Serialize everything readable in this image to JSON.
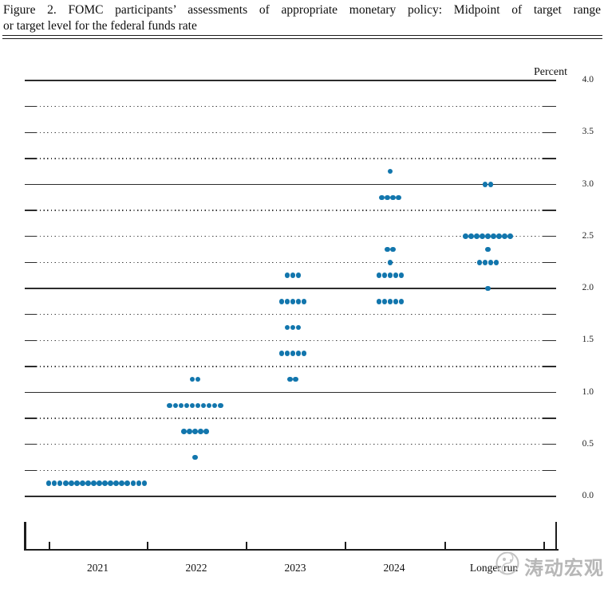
{
  "title": {
    "line1": "Figure 2.  FOMC participants’ assessments of appropriate monetary policy:  Midpoint of target range",
    "line2": "or target level for the federal funds rate"
  },
  "watermark": {
    "text": "涛动宏观"
  },
  "chart_data": {
    "type": "scatter",
    "subtype": "fomc-dot-plot",
    "title": "FOMC participants’ assessments of appropriate monetary policy: Midpoint of target range or target level for the federal funds rate",
    "ylabel": "Percent",
    "xlabel": "",
    "ylim": [
      0.0,
      4.0
    ],
    "y_gridline_step": 0.25,
    "y_label_step": 0.5,
    "grid": "dotted-quarters-solid-integers",
    "legend_position": "none",
    "ytick_labels": [
      "4.0",
      "3.5",
      "3.0",
      "2.5",
      "2.0",
      "1.5",
      "1.0",
      "0.5",
      "0.0"
    ],
    "categories": [
      "2021",
      "2022",
      "2023",
      "2024",
      "Longer run"
    ],
    "dot_color": "#1276ad",
    "dots": [
      {
        "category": "2021",
        "value": 0.125,
        "count": 18
      },
      {
        "category": "2022",
        "value": 0.375,
        "count": 1
      },
      {
        "category": "2022",
        "value": 0.625,
        "count": 5
      },
      {
        "category": "2022",
        "value": 0.875,
        "count": 10
      },
      {
        "category": "2022",
        "value": 1.125,
        "count": 2
      },
      {
        "category": "2023",
        "value": 1.125,
        "count": 2
      },
      {
        "category": "2023",
        "value": 1.375,
        "count": 5
      },
      {
        "category": "2023",
        "value": 1.625,
        "count": 3
      },
      {
        "category": "2023",
        "value": 1.875,
        "count": 5
      },
      {
        "category": "2023",
        "value": 2.125,
        "count": 3
      },
      {
        "category": "2024",
        "value": 1.875,
        "count": 5
      },
      {
        "category": "2024",
        "value": 2.125,
        "count": 5
      },
      {
        "category": "2024",
        "value": 2.25,
        "count": 1
      },
      {
        "category": "2024",
        "value": 2.375,
        "count": 2
      },
      {
        "category": "2024",
        "value": 2.875,
        "count": 4
      },
      {
        "category": "2024",
        "value": 3.125,
        "count": 1
      },
      {
        "category": "Longer run",
        "value": 2.0,
        "count": 1
      },
      {
        "category": "Longer run",
        "value": 2.25,
        "count": 4
      },
      {
        "category": "Longer run",
        "value": 2.375,
        "count": 1
      },
      {
        "category": "Longer run",
        "value": 2.5,
        "count": 9
      },
      {
        "category": "Longer run",
        "value": 3.0,
        "count": 2
      }
    ]
  }
}
